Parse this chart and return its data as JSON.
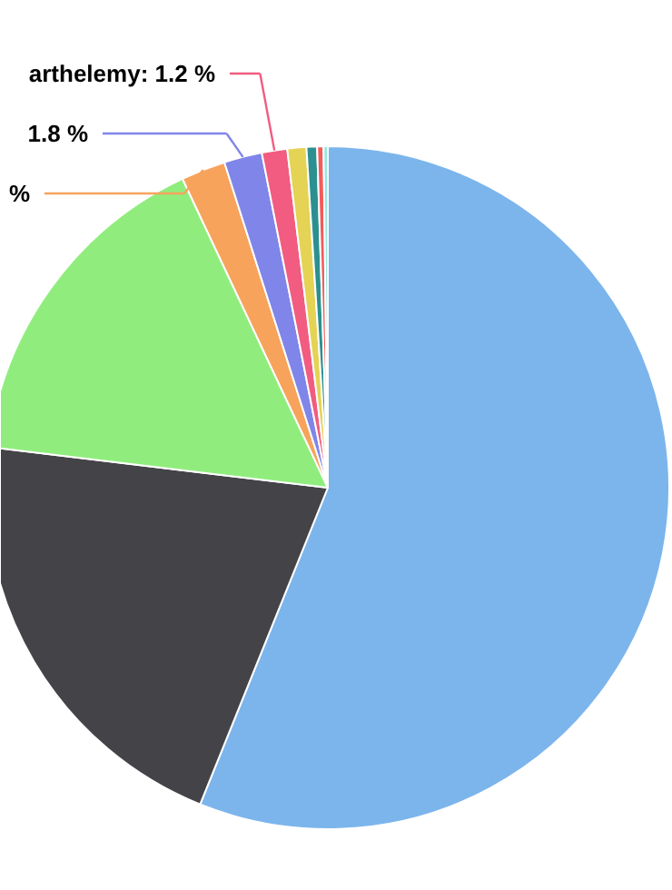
{
  "chart_data": {
    "type": "pie",
    "categories": [
      null,
      null,
      null,
      null,
      null,
      "arthelemy",
      null,
      null,
      null,
      null
    ],
    "values": [
      56.1,
      20.8,
      16.1,
      2.1,
      1.8,
      1.2,
      0.9,
      0.5,
      0.3,
      0.2
    ],
    "colors": [
      "#7cb5ec",
      "#434348",
      "#90ed7d",
      "#f7a35c",
      "#8085e9",
      "#f15c80",
      "#e4d354",
      "#2b908f",
      "#f45b5b",
      "#91e8e1"
    ],
    "value_labels": [
      null,
      null,
      null,
      "%",
      "1.8 %",
      "1.2 %",
      null,
      null,
      null,
      null
    ]
  }
}
